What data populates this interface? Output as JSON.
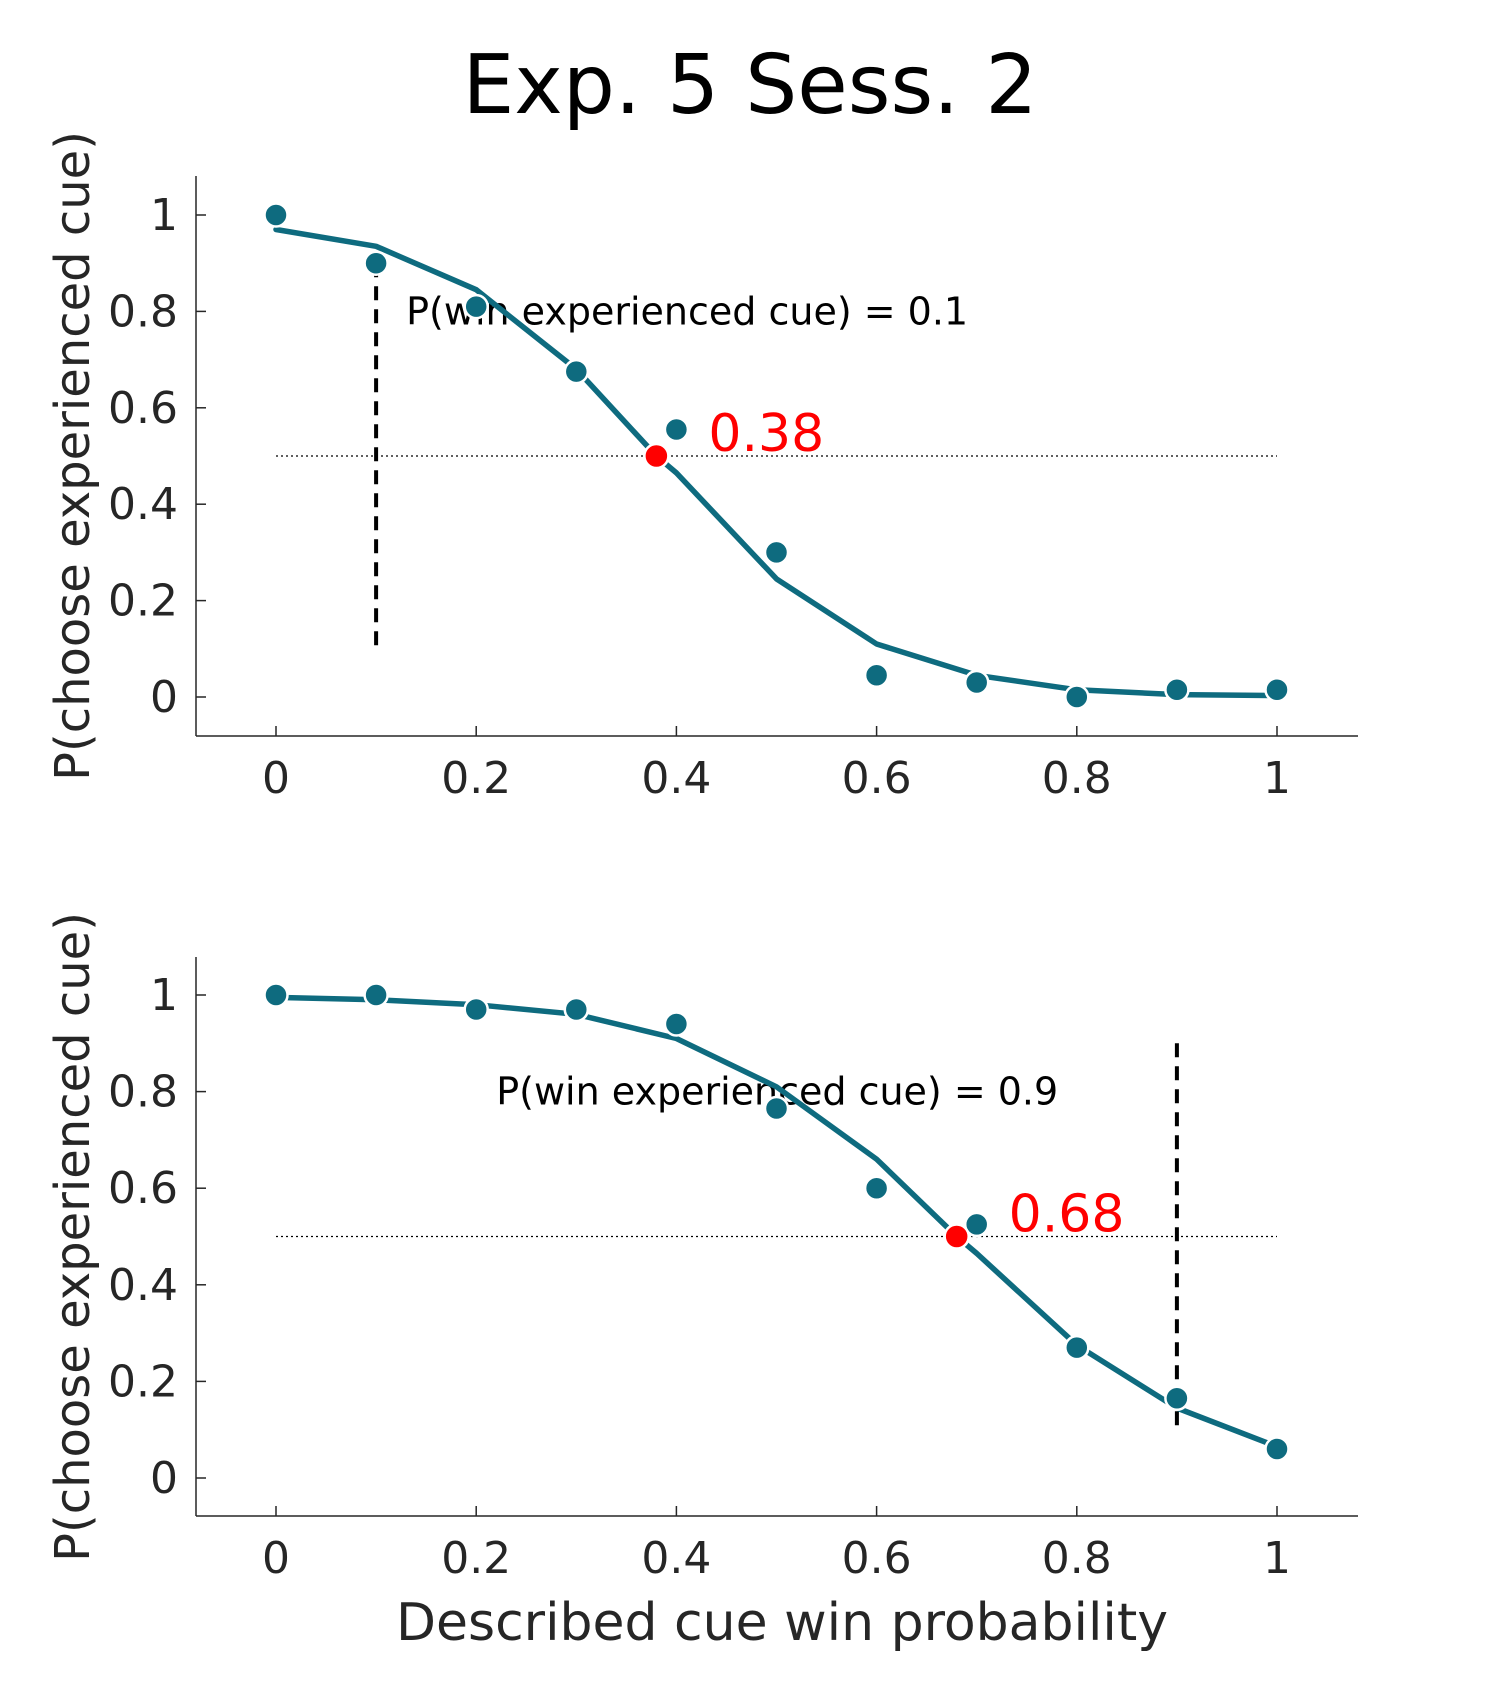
{
  "figure": {
    "title": "Exp. 5 Sess. 2"
  },
  "chart_data": [
    {
      "type": "line",
      "xlabel": "",
      "ylabel": "P(choose experienced cue)",
      "xlim": [
        -0.08,
        1.08
      ],
      "ylim": [
        -0.08,
        1.08
      ],
      "xticks": [
        "0",
        "0.2",
        "0.4",
        "0.6",
        "0.8",
        "1"
      ],
      "yticks": [
        "0",
        "0.2",
        "0.4",
        "0.6",
        "0.8",
        "1"
      ],
      "grid": false,
      "points": {
        "x": [
          0,
          0.1,
          0.2,
          0.3,
          0.4,
          0.5,
          0.6,
          0.7,
          0.8,
          0.9,
          1.0
        ],
        "y": [
          1.0,
          0.9,
          0.81,
          0.675,
          0.555,
          0.3,
          0.045,
          0.03,
          0.0,
          0.015,
          0.015
        ]
      },
      "fit": {
        "x": [
          0,
          0.1,
          0.2,
          0.3,
          0.38,
          0.4,
          0.5,
          0.6,
          0.7,
          0.8,
          0.9,
          1.0
        ],
        "y": [
          0.97,
          0.935,
          0.845,
          0.68,
          0.5,
          0.465,
          0.245,
          0.11,
          0.045,
          0.015,
          0.005,
          0.003
        ]
      },
      "threshold": {
        "x": 0.38,
        "y": 0.5,
        "label": "0.38"
      },
      "reference_line": {
        "x": 0.1,
        "y_range": [
          0.1,
          0.9
        ]
      },
      "chance_line": {
        "y": 0.5,
        "x_range": [
          0,
          1
        ]
      },
      "annotation": {
        "text": "P(win experienced cue) = 0.1",
        "x": 0.13,
        "y": 0.8
      },
      "colors": {
        "series": "#0e6b7f",
        "threshold": "#ff0000",
        "reference": "#000000"
      }
    },
    {
      "type": "line",
      "xlabel": "Described cue win probability",
      "ylabel": "P(choose experienced cue)",
      "xlim": [
        -0.08,
        1.08
      ],
      "ylim": [
        -0.08,
        1.08
      ],
      "xticks": [
        "0",
        "0.2",
        "0.4",
        "0.6",
        "0.8",
        "1"
      ],
      "yticks": [
        "0",
        "0.2",
        "0.4",
        "0.6",
        "0.8",
        "1"
      ],
      "grid": false,
      "points": {
        "x": [
          0,
          0.1,
          0.2,
          0.3,
          0.4,
          0.5,
          0.6,
          0.7,
          0.8,
          0.9,
          1.0
        ],
        "y": [
          1.0,
          1.0,
          0.97,
          0.97,
          0.94,
          0.765,
          0.6,
          0.525,
          0.27,
          0.165,
          0.06
        ]
      },
      "fit": {
        "x": [
          0,
          0.1,
          0.2,
          0.3,
          0.4,
          0.5,
          0.6,
          0.68,
          0.7,
          0.8,
          0.9,
          1.0
        ],
        "y": [
          0.995,
          0.99,
          0.98,
          0.96,
          0.91,
          0.81,
          0.66,
          0.5,
          0.465,
          0.275,
          0.145,
          0.065
        ]
      },
      "threshold": {
        "x": 0.68,
        "y": 0.5,
        "label": "0.68"
      },
      "reference_line": {
        "x": 0.9,
        "y_range": [
          0.1,
          0.9
        ]
      },
      "chance_line": {
        "y": 0.5,
        "x_range": [
          0,
          1
        ]
      },
      "annotation": {
        "text": "P(win experienced cue) = 0.9",
        "x": 0.22,
        "y": 0.8
      },
      "colors": {
        "series": "#0e6b7f",
        "threshold": "#ff0000",
        "reference": "#000000"
      }
    }
  ]
}
